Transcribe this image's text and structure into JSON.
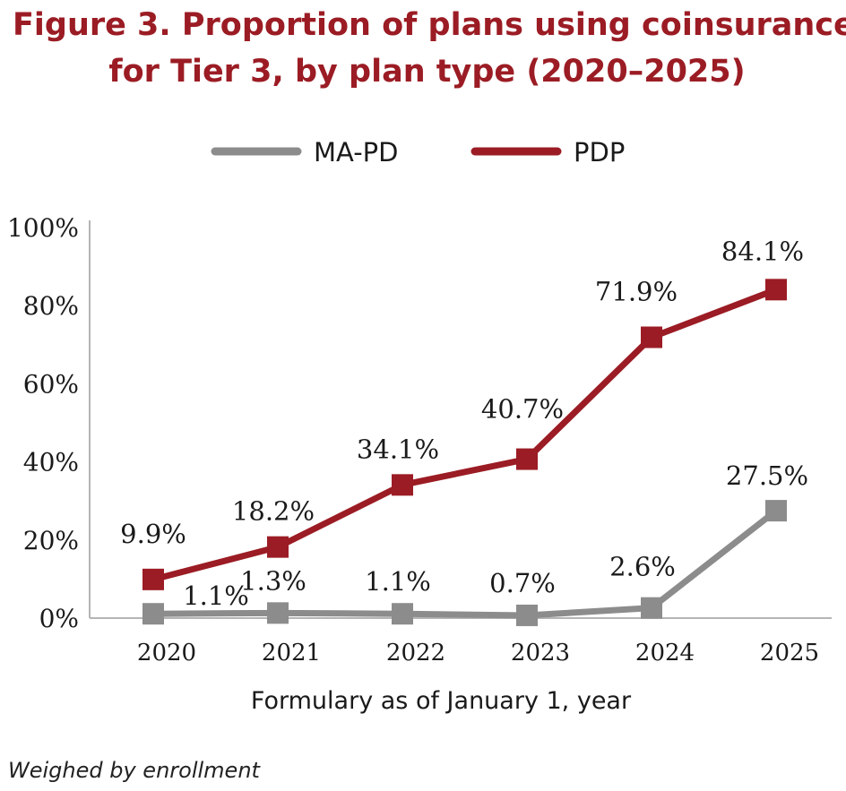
{
  "figure": {
    "title_line1": "Figure 3. Proportion of plans using coinsurance",
    "title_line2": "for Tier 3, by plan type (2020–2025)",
    "title_color": "#9B1C24",
    "footnote": "Weighed by enrollment"
  },
  "chart_data": {
    "type": "line",
    "x": [
      "2020",
      "2021",
      "2022",
      "2023",
      "2024",
      "2025"
    ],
    "xlabel": "Formulary as of January 1, year",
    "ylabel": "",
    "ylim": [
      0,
      100
    ],
    "yticks": [
      "0%",
      "20%",
      "40%",
      "60%",
      "80%",
      "100%"
    ],
    "grid": false,
    "legend_position": "top-center",
    "series": [
      {
        "name": "MA-PD",
        "color": "#8C8C8C",
        "values": [
          1.1,
          1.3,
          1.1,
          0.7,
          2.6,
          27.5
        ],
        "labels": [
          "1.1%",
          "1.3%",
          "1.1%",
          "0.7%",
          "2.6%",
          "27.5%"
        ]
      },
      {
        "name": "PDP",
        "color": "#9B1C24",
        "values": [
          9.9,
          18.2,
          34.1,
          40.7,
          71.9,
          84.1
        ],
        "labels": [
          "9.9%",
          "18.2%",
          "34.1%",
          "40.7%",
          "71.9%",
          "84.1%"
        ]
      }
    ]
  }
}
